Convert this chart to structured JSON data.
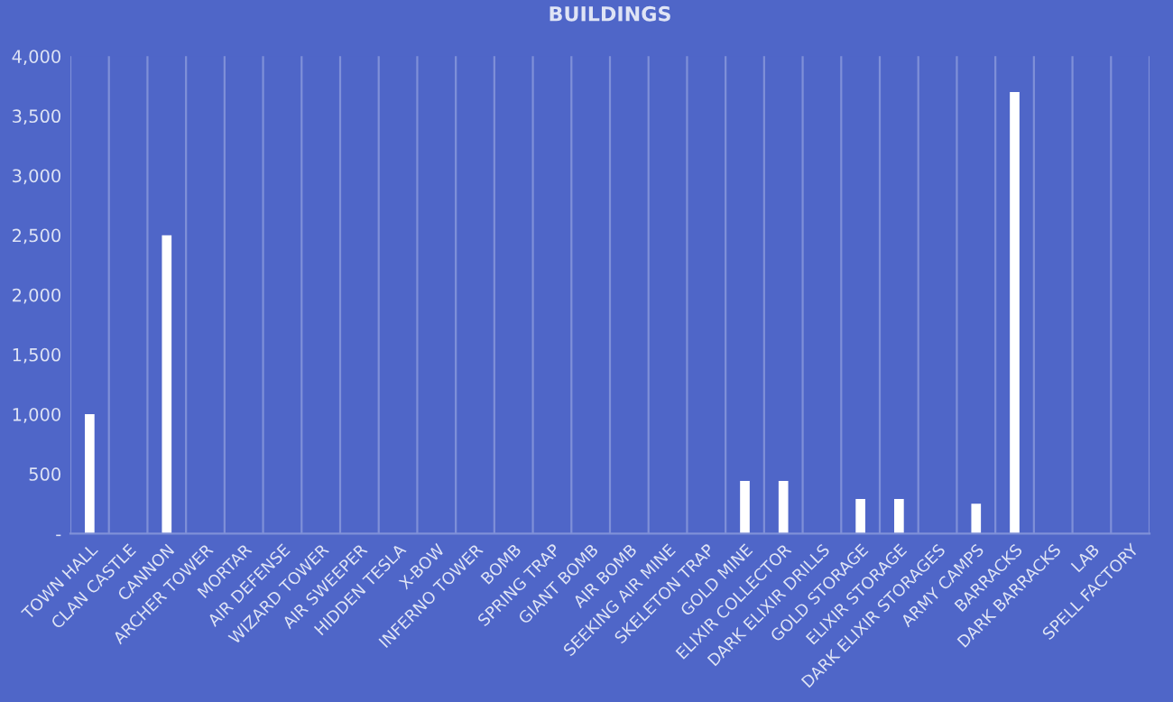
{
  "chart_data": {
    "type": "bar",
    "title": "BUILDINGS",
    "categories": [
      "TOWN HALL",
      "CLAN CASTLE",
      "CANNON",
      "ARCHER TOWER",
      "MORTAR",
      "AIR DEFENSE",
      "WIZARD TOWER",
      "AIR SWEEPER",
      "HIDDEN TESLA",
      "X-BOW",
      "INFERNO TOWER",
      "BOMB",
      "SPRING TRAP",
      "GIANT BOMB",
      "AIR BOMB",
      "SEEKING AIR MINE",
      "SKELETON TRAP",
      "GOLD MINE",
      "ELIXIR COLLECTOR",
      "DARK ELIXIR DRILLS",
      "GOLD STORAGE",
      "ELIXIR STORAGE",
      "DARK ELIXIR STORAGES",
      "ARMY CAMPS",
      "BARRACKS",
      "DARK BARRACKS",
      "LAB",
      "SPELL FACTORY"
    ],
    "values": [
      1000,
      null,
      2500,
      null,
      null,
      null,
      null,
      null,
      null,
      null,
      null,
      null,
      null,
      null,
      null,
      null,
      null,
      440,
      440,
      null,
      290,
      290,
      null,
      250,
      3700,
      null,
      null,
      null
    ],
    "color": "#ffffff",
    "ylim": [
      0,
      4000
    ],
    "yticks": [
      {
        "value": 0,
        "label": "-"
      },
      {
        "value": 500,
        "label": "500"
      },
      {
        "value": 1000,
        "label": "1,000"
      },
      {
        "value": 1500,
        "label": "1,500"
      },
      {
        "value": 2000,
        "label": "2,000"
      },
      {
        "value": 2500,
        "label": "2,500"
      },
      {
        "value": 3000,
        "label": "3,000"
      },
      {
        "value": 3500,
        "label": "3,500"
      },
      {
        "value": 4000,
        "label": "4,000"
      }
    ],
    "grid": "x",
    "legend": false
  }
}
